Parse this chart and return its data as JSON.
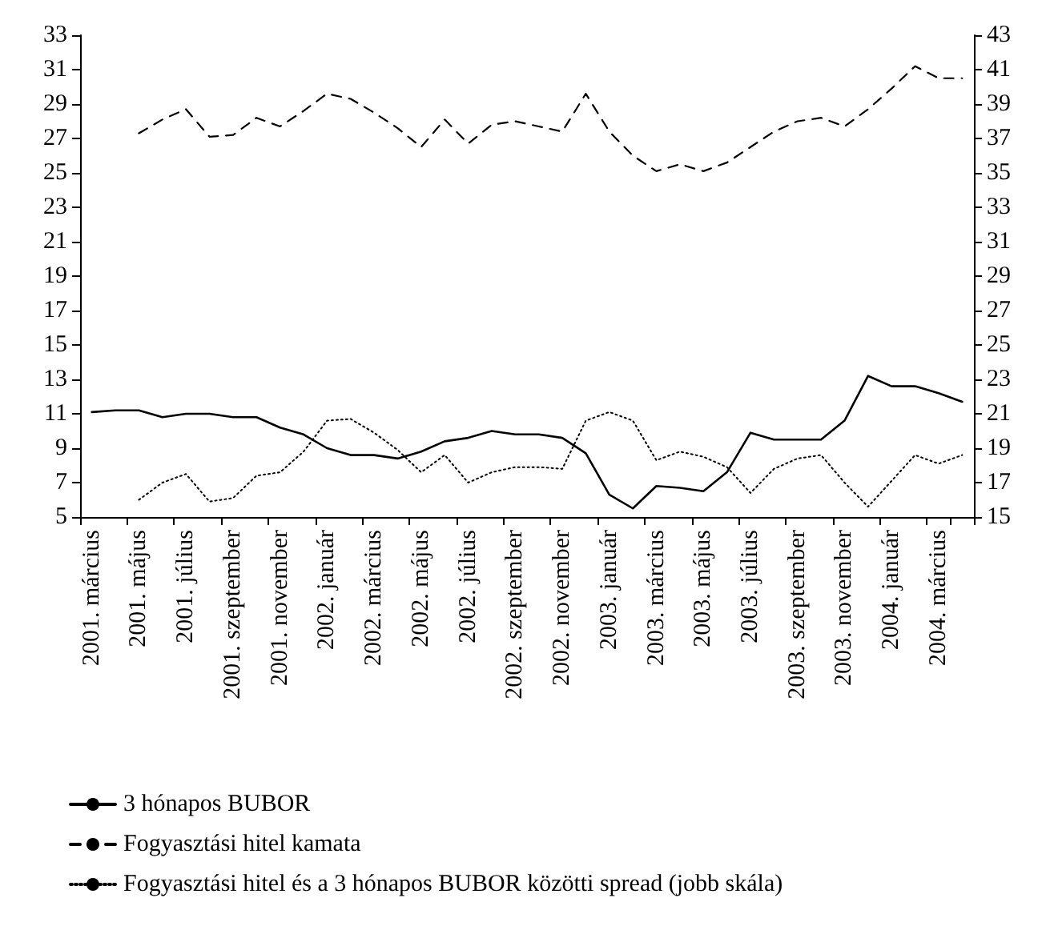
{
  "chart_data": {
    "type": "line",
    "categories": [
      "2001. március",
      null,
      "2001. május",
      null,
      "2001. július",
      null,
      "2001. szeptember",
      null,
      "2001. november",
      null,
      "2002. január",
      null,
      "2002. március",
      null,
      "2002. május",
      null,
      "2002. július",
      null,
      "2002. szeptember",
      null,
      "2002. november",
      null,
      "2003. január",
      null,
      "2003. március",
      null,
      "2003. május",
      null,
      "2003. július",
      null,
      "2003. szeptember",
      null,
      "2003. november",
      null,
      "2004. január",
      null,
      "2004. március",
      null
    ],
    "series": [
      {
        "name": "3 hónapos BUBOR",
        "color": "#000000",
        "line_style": "solid",
        "values": [
          11.1,
          11.2,
          11.2,
          10.8,
          11.0,
          11.0,
          10.8,
          10.8,
          10.2,
          9.8,
          9.0,
          8.6,
          8.6,
          8.4,
          8.8,
          9.4,
          9.6,
          10.0,
          9.8,
          9.8,
          9.6,
          8.7,
          6.3,
          5.5,
          6.8,
          6.7,
          6.5,
          7.6,
          9.9,
          9.5,
          9.5,
          9.5,
          10.6,
          13.2,
          12.6,
          12.6,
          12.2,
          11.7
        ]
      },
      {
        "name": "Fogyasztási hitel kamata",
        "color": "#000000",
        "line_style": "dashed",
        "values": [
          null,
          null,
          27.3,
          28.1,
          28.7,
          27.1,
          27.2,
          28.2,
          27.7,
          28.6,
          29.6,
          29.3,
          28.5,
          27.6,
          26.5,
          28.1,
          26.7,
          27.8,
          28.0,
          27.7,
          27.4,
          29.6,
          27.4,
          26.0,
          25.1,
          25.5,
          25.1,
          25.6,
          26.5,
          27.4,
          28.0,
          28.2,
          27.7,
          28.7,
          29.9,
          31.2,
          30.5,
          30.5
        ]
      },
      {
        "name": "Fogyasztási hitel és a 3 hónapos BUBOR közötti spread (jobb skála)",
        "color": "#000000",
        "line_style": "dotted",
        "axis": "y2",
        "values": [
          null,
          null,
          16.0,
          17.0,
          17.5,
          15.9,
          16.1,
          17.4,
          17.6,
          18.8,
          20.6,
          20.7,
          19.9,
          18.9,
          17.6,
          18.6,
          17.0,
          17.6,
          17.9,
          17.9,
          17.8,
          20.6,
          21.1,
          20.6,
          18.3,
          18.8,
          18.5,
          17.9,
          16.4,
          17.8,
          18.4,
          18.6,
          17.0,
          15.6,
          17.1,
          18.6,
          18.1,
          18.6
        ]
      }
    ],
    "ylim": [
      5,
      33
    ],
    "yticks": [
      5,
      7,
      9,
      11,
      13,
      15,
      17,
      19,
      21,
      23,
      25,
      27,
      29,
      31,
      33
    ],
    "y2lim": [
      15,
      43
    ],
    "y2ticks": [
      15,
      17,
      19,
      21,
      23,
      25,
      27,
      29,
      31,
      33,
      35,
      37,
      39,
      41,
      43
    ],
    "legend": "bottom",
    "grid": false,
    "marker": "none"
  }
}
